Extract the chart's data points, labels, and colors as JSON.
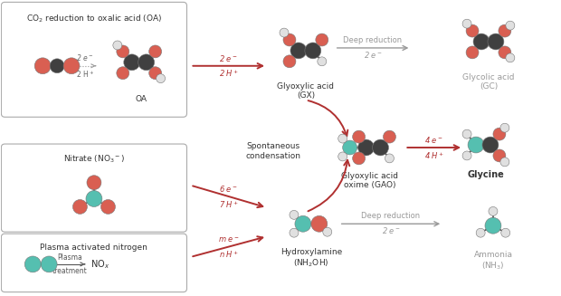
{
  "bg_color": "#ffffff",
  "red_arrow_color": "#b03030",
  "gray_arrow_color": "#999999",
  "dark_text": "#333333",
  "gray_text": "#999999",
  "teal_color": "#55bfb0",
  "red_atom_color": "#d95f52",
  "dark_atom_color": "#404040",
  "white_atom_color": "#e0e0e0",
  "box1_title": "CO$_2$ reduction to oxalic acid (OA)",
  "box2_title": "Nitrate (NO$_3$$^-$)",
  "box3_title": "Plasma activated nitrogen",
  "label_OA": "OA",
  "label_GX": "Glyoxylic acid\n(GX)",
  "label_GC": "Glycolic acid\n(GC)",
  "label_GAO": "Glyoxylic acid\noxime (GAO)",
  "label_Glycine": "Glycine",
  "label_NH2OH": "Hydroxylamine\n(NH$_2$OH)",
  "label_NH3": "Ammonia\n(NH$_3$)",
  "label_spont": "Spontaneous\ncondensation",
  "label_deep1": "Deep reduction",
  "label_deep2": "Deep reduction",
  "label_2e_top": "2 e$^-$",
  "label_2H_top": "2 H$^+$",
  "label_2e_deep1": "2 e$^-$",
  "label_2e_gao": "4 e$^-$",
  "label_4H_gao": "4 H$^+$",
  "label_6e": "6 e$^-$",
  "label_7H": "7 H$^+$",
  "label_me": "m e$^-$",
  "label_nH": "n H$^+$",
  "label_2e_deep2": "2 e$^-$",
  "label_plasma": "Plasma",
  "label_treatment": "treatment",
  "label_NOx": "NO$_x$",
  "label_2e_inside": "2 e$^-$",
  "label_2H_inside": "2 H$^+$"
}
